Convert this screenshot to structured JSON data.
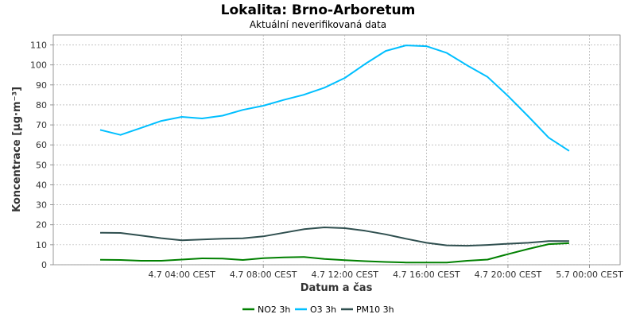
{
  "chart_data": {
    "type": "line",
    "title": "Lokalita: Brno-Arboretum",
    "subtitle": "Aktuální neverifikovaná data",
    "xlabel": "Datum a čas",
    "ylabel": "Koncentrace [µg·m⁻³]",
    "ylim": [
      0,
      115
    ],
    "yticks": [
      0,
      10,
      20,
      30,
      40,
      50,
      60,
      70,
      80,
      90,
      100,
      110
    ],
    "x_range_hours": [
      -2.3,
      25.5
    ],
    "xticks": [
      {
        "hour": 4,
        "label": "4.7 04:00 CEST"
      },
      {
        "hour": 8,
        "label": "4.7 08:00 CEST"
      },
      {
        "hour": 12,
        "label": "4.7 12:00 CEST"
      },
      {
        "hour": 16,
        "label": "4.7 16:00 CEST"
      },
      {
        "hour": 20,
        "label": "4.7 20:00 CEST"
      },
      {
        "hour": 24,
        "label": "5.7 00:00 CEST"
      }
    ],
    "x_hours": [
      0,
      1,
      2,
      3,
      4,
      5,
      6,
      7,
      8,
      9,
      10,
      11,
      12,
      13,
      14,
      15,
      16,
      17,
      18,
      19,
      20,
      21,
      22,
      23,
      24
    ],
    "grid": true,
    "legend": "bottom",
    "series": [
      {
        "name": "NO2 3h",
        "color": "#008000",
        "values": [
          2.5,
          2.4,
          2,
          2,
          2.6,
          3.2,
          3.1,
          2.4,
          3.3,
          3.7,
          3.9,
          2.9,
          2.3,
          1.8,
          1.4,
          1.1,
          1.1,
          1.1,
          2,
          2.6,
          5.3,
          7.9,
          10.3,
          10.8,
          null
        ]
      },
      {
        "name": "O3 3h",
        "color": "#00bfff",
        "values": [
          67.5,
          65,
          68.5,
          72,
          74,
          73.2,
          74.6,
          77.5,
          79.6,
          82.5,
          85.1,
          88.6,
          93.5,
          100.5,
          107,
          109.8,
          109.4,
          106,
          99.8,
          94,
          84.5,
          74.2,
          63.6,
          57,
          null
        ]
      },
      {
        "name": "PM10 3h",
        "color": "#2f4f4f",
        "values": [
          16,
          15.9,
          14.6,
          13.3,
          12.2,
          12.6,
          13,
          13.2,
          14.2,
          16,
          17.8,
          18.7,
          18.3,
          17,
          15.2,
          13,
          11,
          9.7,
          9.5,
          9.9,
          10.5,
          11,
          11.8,
          11.8,
          null
        ]
      }
    ]
  }
}
